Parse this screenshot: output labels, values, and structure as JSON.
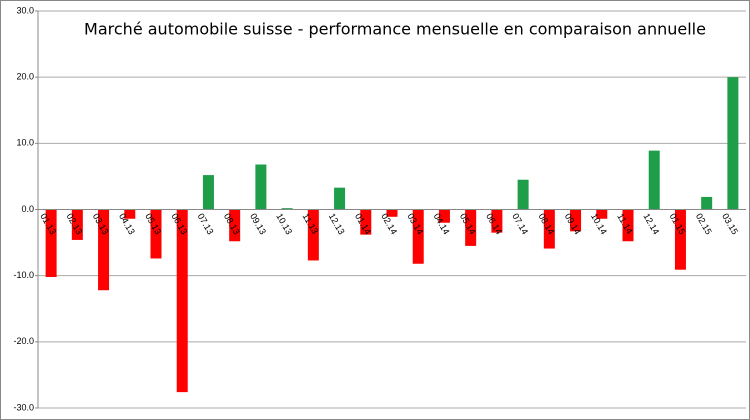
{
  "chart_data": {
    "type": "bar",
    "title": "Marché automobile suisse  - performance mensuelle en comparaison annuelle",
    "categories": [
      "01.13",
      "02.13",
      "03.13",
      "04.13",
      "05.13",
      "06.13",
      "07.13",
      "08.13",
      "09.13",
      "10.13",
      "11.13",
      "12.13",
      "01.14",
      "02.14",
      "03.14",
      "04.14",
      "05.14",
      "06.14",
      "07.14",
      "08.14",
      "09.14",
      "10.14",
      "11.14",
      "12.14",
      "01.15",
      "02.15",
      "03.15"
    ],
    "values": [
      -10.2,
      -4.6,
      -12.2,
      -1.4,
      -7.4,
      -27.6,
      5.2,
      -4.8,
      6.8,
      0.2,
      -7.7,
      3.3,
      -3.8,
      -1.1,
      -8.2,
      -2.0,
      -5.5,
      -3.5,
      4.5,
      -5.9,
      -3.3,
      -1.4,
      -4.8,
      8.9,
      -9.1,
      1.9,
      20.0
    ],
    "positive_color": "#1e9e48",
    "negative_color": "#ff0000",
    "ylim": [
      -30,
      30
    ],
    "yticks": [
      {
        "value": -30,
        "label": "-30.0"
      },
      {
        "value": -20,
        "label": "-20.0"
      },
      {
        "value": -10,
        "label": "-10.0"
      },
      {
        "value": 0,
        "label": "0.0"
      },
      {
        "value": 10,
        "label": "10.0"
      },
      {
        "value": 20,
        "label": "20.0"
      },
      {
        "value": 30,
        "label": "30.0"
      }
    ],
    "grid": true
  }
}
